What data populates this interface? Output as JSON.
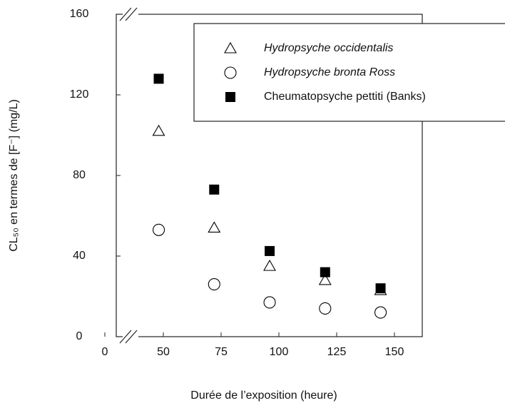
{
  "chart_data": {
    "type": "scatter",
    "x_label": "Durée de l’exposition (heure)",
    "y_label": "CL₅₀ en termes de [F⁻] (mg/L)",
    "xlim": [
      0,
      162
    ],
    "ylim": [
      0,
      160
    ],
    "xticks": [
      0,
      50,
      75,
      100,
      125,
      150
    ],
    "yticks": [
      0,
      40,
      80,
      120,
      160
    ],
    "axis_break": true,
    "legend": "top-right",
    "series": [
      {
        "name": "Hydropsyche occidentalis",
        "color": "#000000",
        "marker": "triangle-open",
        "x": [
          48,
          72,
          96,
          120,
          144
        ],
        "values": [
          102,
          54,
          35,
          28,
          23
        ]
      },
      {
        "name": "Hydropsyche bronta Ross",
        "color": "#000000",
        "marker": "circle-open",
        "x": [
          48,
          72,
          96,
          120,
          144
        ],
        "values": [
          53,
          26,
          17,
          14,
          12
        ]
      },
      {
        "name": "Cheumatopsyche pettiti (Banks)",
        "color": "#000000",
        "marker": "square-filled",
        "x": [
          48,
          72,
          96,
          120,
          144
        ],
        "values": [
          128,
          73,
          42.5,
          32,
          24
        ]
      }
    ]
  }
}
